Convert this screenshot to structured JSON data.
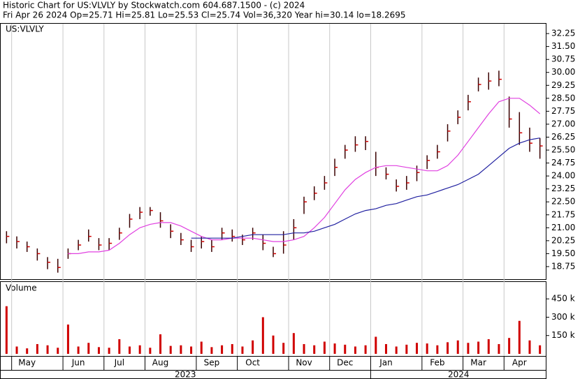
{
  "header": {
    "line1": "Historic Chart for US:VLVLY by Stockwatch.com 604.687.1500 - (c) 2024",
    "line2": "Fri Apr 26 2024   Op=25.71   Hi=25.81   Lo=25.53   Cl=25.74   Vol=36,320   Year hi=30.14   lo=18.2695"
  },
  "chart_data": [
    {
      "type": "ohlc",
      "title": "US:VLVLY",
      "categories": [
        null,
        "May",
        null,
        null,
        null,
        null,
        "Jun",
        null,
        null,
        null,
        "Jul",
        null,
        null,
        null,
        "Aug",
        null,
        null,
        null,
        null,
        "Sep",
        null,
        null,
        null,
        "Oct",
        null,
        null,
        null,
        null,
        "Nov",
        null,
        null,
        null,
        "Dec",
        null,
        null,
        null,
        "Jan",
        null,
        null,
        null,
        null,
        "Feb",
        null,
        null,
        null,
        "Mar",
        null,
        null,
        null,
        "Apr",
        null,
        null,
        null
      ],
      "year_labels": [
        "2023",
        "2024"
      ],
      "high": [
        20.8,
        20.5,
        20.2,
        19.8,
        19.3,
        19.2,
        19.8,
        20.3,
        20.9,
        20.4,
        20.4,
        21.0,
        21.8,
        22.2,
        22.2,
        21.9,
        21.2,
        20.7,
        20.3,
        20.5,
        20.3,
        21.0,
        20.9,
        20.6,
        21.0,
        20.6,
        19.9,
        20.8,
        21.5,
        22.8,
        23.4,
        24.0,
        25.0,
        25.8,
        26.3,
        26.3,
        25.4,
        24.5,
        23.8,
        24.0,
        24.6,
        25.2,
        25.8,
        27.0,
        27.8,
        28.7,
        29.7,
        30.0,
        30.1,
        28.6,
        27.7,
        26.8,
        26.2
      ],
      "low": [
        20.1,
        19.8,
        19.6,
        19.1,
        18.6,
        18.4,
        19.2,
        19.7,
        20.2,
        19.7,
        19.7,
        20.3,
        21.0,
        21.5,
        21.7,
        21.0,
        20.4,
        20.0,
        19.6,
        19.8,
        19.6,
        20.3,
        20.2,
        20.0,
        20.3,
        19.7,
        19.3,
        19.5,
        20.3,
        21.8,
        22.6,
        23.2,
        24.0,
        25.0,
        25.4,
        25.5,
        24.0,
        23.8,
        23.1,
        23.2,
        23.7,
        24.4,
        25.0,
        26.0,
        27.0,
        27.8,
        28.9,
        29.0,
        29.2,
        26.8,
        25.8,
        25.4,
        25.0
      ],
      "close": [
        20.5,
        20.2,
        19.9,
        19.5,
        19.0,
        18.7,
        19.5,
        20.0,
        20.5,
        20.0,
        20.1,
        20.7,
        21.5,
        21.9,
        22.0,
        21.4,
        20.8,
        20.3,
        19.9,
        20.2,
        19.9,
        20.7,
        20.5,
        20.3,
        20.7,
        20.1,
        19.5,
        20.0,
        21.0,
        22.5,
        23.0,
        23.6,
        24.5,
        25.5,
        25.8,
        26.0,
        24.5,
        24.1,
        23.4,
        23.6,
        24.2,
        24.9,
        25.4,
        26.6,
        27.4,
        28.3,
        29.3,
        29.5,
        29.6,
        27.3,
        26.5,
        25.9,
        25.74
      ],
      "bar_color": "#3a0000",
      "close_color": "#d00000",
      "series": [
        {
          "color": "#e040e0",
          "values": [
            null,
            null,
            null,
            null,
            null,
            null,
            19.5,
            19.5,
            19.6,
            19.6,
            19.7,
            20.1,
            20.6,
            21.0,
            21.2,
            21.3,
            21.3,
            21.1,
            20.8,
            20.5,
            20.3,
            20.3,
            20.4,
            20.4,
            20.4,
            20.3,
            20.2,
            20.2,
            20.3,
            20.5,
            21.0,
            21.6,
            22.4,
            23.2,
            23.8,
            24.2,
            24.5,
            24.6,
            24.6,
            24.5,
            24.4,
            24.3,
            24.3,
            24.6,
            25.2,
            26.0,
            26.8,
            27.6,
            28.3,
            28.5,
            28.5,
            28.1,
            27.6
          ]
        },
        {
          "color": "#2020a0",
          "values": [
            null,
            null,
            null,
            null,
            null,
            null,
            null,
            null,
            null,
            null,
            null,
            null,
            null,
            null,
            null,
            null,
            null,
            null,
            20.4,
            20.4,
            20.4,
            20.4,
            20.4,
            20.5,
            20.6,
            20.6,
            20.6,
            20.6,
            20.7,
            20.7,
            20.8,
            21.0,
            21.2,
            21.5,
            21.8,
            22.0,
            22.1,
            22.3,
            22.4,
            22.6,
            22.8,
            22.9,
            23.1,
            23.3,
            23.5,
            23.8,
            24.1,
            24.6,
            25.1,
            25.6,
            25.9,
            26.1,
            26.2
          ]
        }
      ],
      "ylim": [
        17.98,
        32.86
      ],
      "yticks": [
        32.25,
        {
          "value": 31.5,
          "label": "31.50"
        },
        30.75,
        {
          "value": 30,
          "label": "30.00"
        },
        29.25,
        {
          "value": 28.5,
          "label": "28.50"
        },
        27.75,
        {
          "value": 27,
          "label": "27.00"
        },
        26.25,
        {
          "value": 25.5,
          "label": "25.50"
        },
        24.75,
        {
          "value": 24,
          "label": "24.00"
        },
        23.25,
        {
          "value": 22.5,
          "label": "22.50"
        },
        21.75,
        {
          "value": 21,
          "label": "21.00"
        },
        20.25,
        {
          "value": 19.5,
          "label": "19.50"
        },
        18.75
      ]
    },
    {
      "type": "bar",
      "title": "Volume",
      "color": "#d00000",
      "values": [
        390000,
        60000,
        45000,
        80000,
        70000,
        50000,
        240000,
        60000,
        90000,
        55000,
        50000,
        120000,
        60000,
        70000,
        50000,
        160000,
        65000,
        70000,
        60000,
        100000,
        55000,
        70000,
        80000,
        60000,
        110000,
        300000,
        150000,
        90000,
        170000,
        80000,
        70000,
        100000,
        85000,
        75000,
        60000,
        70000,
        140000,
        80000,
        60000,
        75000,
        90000,
        85000,
        70000,
        95000,
        110000,
        90000,
        100000,
        120000,
        80000,
        130000,
        270000,
        110000,
        70000
      ],
      "ylim": [
        -23000,
        594000
      ],
      "yticks": [
        {
          "value": 450000,
          "label": "450 k"
        },
        {
          "value": 300000,
          "label": "300 k"
        },
        {
          "value": 150000,
          "label": "150 k"
        }
      ]
    }
  ]
}
